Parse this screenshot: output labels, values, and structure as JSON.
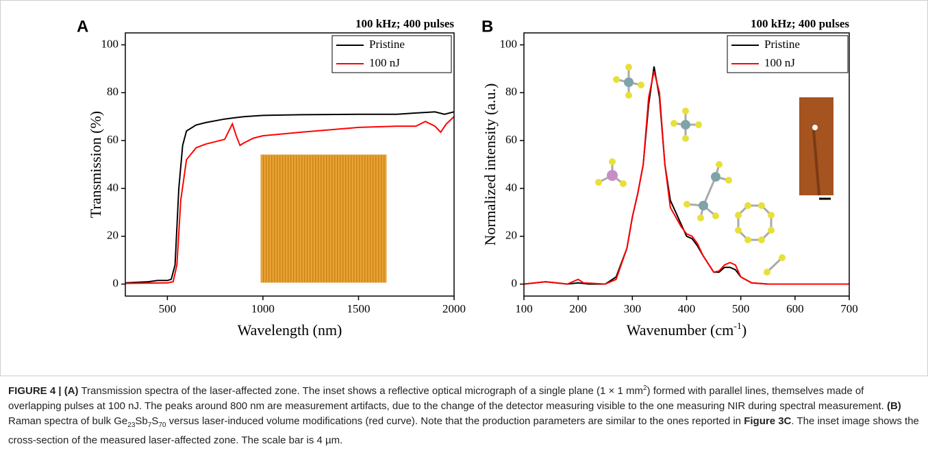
{
  "chart_data": [
    {
      "type": "line",
      "panel": "A",
      "title": "100 kHz; 400 pulses",
      "xlabel": "Wavelength (nm)",
      "ylabel": "Transmission (%)",
      "xlim": [
        280,
        2000
      ],
      "ylim": [
        -5,
        105
      ],
      "xticks": [
        500,
        1000,
        1500,
        2000
      ],
      "yticks": [
        0,
        20,
        40,
        60,
        80,
        100
      ],
      "series": [
        {
          "name": "Pristine",
          "color": "#000000",
          "x": [
            280,
            400,
            450,
            500,
            520,
            540,
            560,
            580,
            600,
            650,
            700,
            800,
            850,
            900,
            1000,
            1200,
            1500,
            1700,
            1800,
            1900,
            1950,
            2000
          ],
          "values": [
            0.5,
            1,
            1.5,
            1.5,
            2,
            8,
            40,
            58,
            64,
            66.5,
            67.5,
            69,
            69.5,
            70,
            70.5,
            70.8,
            71,
            71,
            71.5,
            72,
            71,
            72
          ]
        },
        {
          "name": "100 nJ",
          "color": "#ff0000",
          "x": [
            280,
            500,
            530,
            550,
            570,
            600,
            650,
            700,
            800,
            840,
            860,
            880,
            900,
            950,
            1000,
            1200,
            1500,
            1700,
            1800,
            1850,
            1900,
            1930,
            1960,
            2000
          ],
          "values": [
            0.3,
            0.5,
            1,
            8,
            35,
            52,
            57,
            58.5,
            60.5,
            67,
            62,
            58,
            59,
            61,
            62,
            63.5,
            65.5,
            66,
            66,
            68,
            66,
            63.5,
            67,
            70
          ]
        }
      ]
    },
    {
      "type": "line",
      "panel": "B",
      "title": "100 kHz; 400 pulses",
      "xlabel": "Wavenumber (cm",
      "xlabel_sup": "-1",
      "xlabel_end": ")",
      "ylabel": "Normalized intensity (a.u.)",
      "xlim": [
        100,
        700
      ],
      "ylim": [
        -5,
        105
      ],
      "xticks": [
        100,
        200,
        300,
        400,
        500,
        600,
        700
      ],
      "yticks": [
        0,
        20,
        40,
        60,
        80,
        100
      ],
      "series": [
        {
          "name": "Pristine",
          "color": "#000000",
          "x": [
            100,
            140,
            160,
            180,
            200,
            220,
            250,
            270,
            290,
            300,
            310,
            320,
            330,
            340,
            350,
            360,
            370,
            380,
            390,
            400,
            410,
            420,
            430,
            450,
            460,
            470,
            480,
            490,
            500,
            520,
            550,
            700
          ],
          "values": [
            0,
            1,
            0.5,
            0,
            0.5,
            0,
            0,
            3,
            15,
            28,
            38,
            50,
            75,
            91,
            78,
            50,
            35,
            30,
            25,
            20,
            19,
            16,
            12,
            5,
            5,
            7,
            7,
            6,
            3,
            0.5,
            0,
            0
          ]
        },
        {
          "name": "100 nJ",
          "color": "#ff0000",
          "x": [
            100,
            140,
            180,
            200,
            210,
            250,
            270,
            290,
            300,
            310,
            320,
            330,
            340,
            350,
            360,
            370,
            380,
            390,
            400,
            410,
            420,
            430,
            450,
            460,
            470,
            480,
            490,
            500,
            520,
            550,
            700
          ],
          "values": [
            0,
            1,
            0,
            2,
            0.5,
            0,
            2,
            15,
            28,
            38,
            50,
            78,
            89,
            80,
            50,
            32,
            28,
            24,
            21,
            20,
            17,
            12,
            5,
            5.5,
            8,
            9,
            8,
            3,
            0.5,
            0,
            0
          ]
        }
      ]
    }
  ],
  "caption": [
    {
      "text": "FIGURE 4 | (A)",
      "style": "bold"
    },
    {
      "text": " Transmission spectra of the laser-affected zone. The inset shows a reflective optical micrograph of a single plane (1 × 1 mm",
      "style": "normal"
    },
    {
      "text": "2",
      "style": "sup"
    },
    {
      "text": ") formed with parallel lines, themselves made of overlapping pulses at 100 nJ. The peaks around 800 nm are measurement artifacts, due to the change of the detector measuring visible to the one measuring NIR during spectral measurement. ",
      "style": "normal"
    },
    {
      "text": "(B)",
      "style": "bold"
    },
    {
      "text": " Raman spectra of bulk Ge",
      "style": "normal"
    },
    {
      "text": "23",
      "style": "sub"
    },
    {
      "text": "Sb",
      "style": "normal"
    },
    {
      "text": "7",
      "style": "sub"
    },
    {
      "text": "S",
      "style": "normal"
    },
    {
      "text": "70",
      "style": "sub"
    },
    {
      "text": " versus laser-induced volume modifications (red curve). Note that the production parameters are similar to the ones reported in ",
      "style": "normal"
    },
    {
      "text": "Figure 3C",
      "style": "bold"
    },
    {
      "text": ". The inset image shows the cross-section of the measured laser-affected zone. The scale bar is 4 µm.",
      "style": "normal"
    }
  ]
}
